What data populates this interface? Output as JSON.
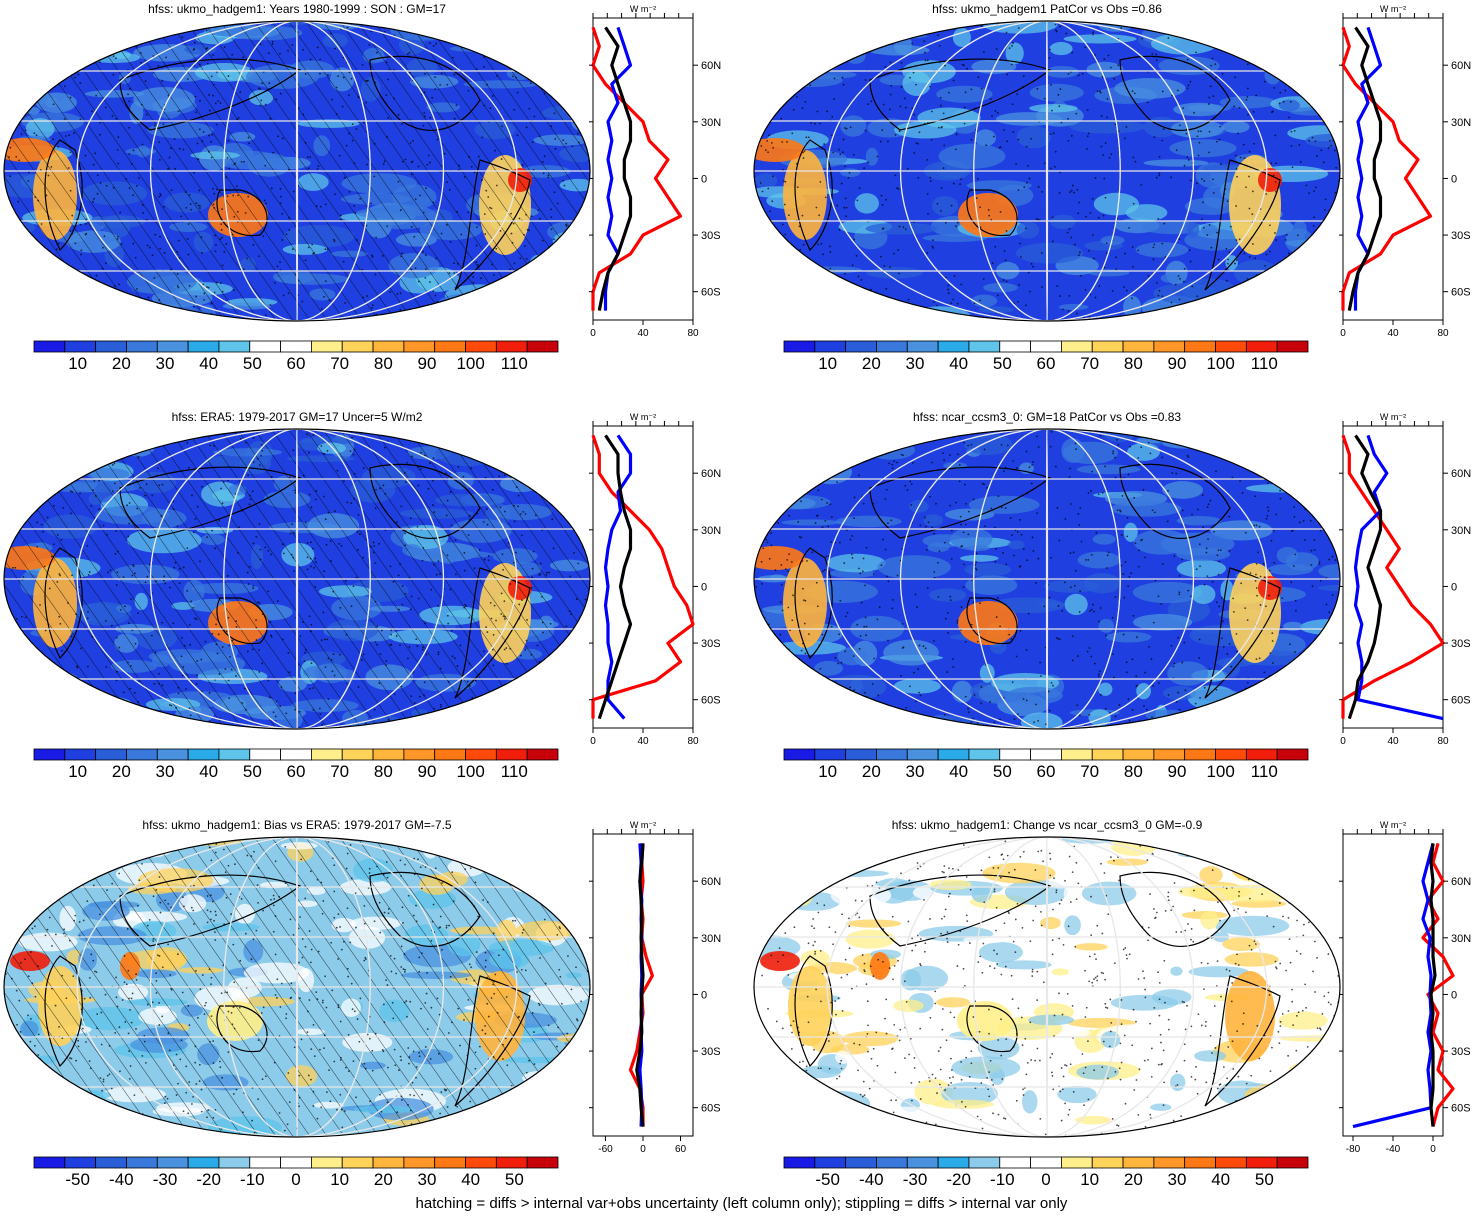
{
  "panels": [
    {
      "title": "hfss: ukmo_hadgem1: Years 1980-1999 : SON : GM=17",
      "colorbar_labels": [
        "10",
        "20",
        "30",
        "40",
        "50",
        "60",
        "70",
        "80",
        "90",
        "100",
        "110"
      ],
      "profile_unit": "W m⁻²",
      "profile_xticks": [
        "0",
        "40",
        "80"
      ],
      "profile_lat_labels": [
        "60N",
        "30N",
        "0",
        "30S",
        "60S"
      ],
      "hatched": true
    },
    {
      "title": "hfss: ukmo_hadgem1 PatCor vs Obs =0.86",
      "colorbar_labels": [
        "10",
        "20",
        "30",
        "40",
        "50",
        "60",
        "70",
        "80",
        "90",
        "100",
        "110"
      ],
      "profile_unit": "W m⁻²",
      "profile_xticks": [
        "0",
        "40",
        "80"
      ],
      "profile_lat_labels": [
        "60N",
        "30N",
        "0",
        "30S",
        "60S"
      ],
      "hatched": false
    },
    {
      "title": "hfss: ERA5: 1979-2017 GM=17 Uncer=5 W/m2",
      "colorbar_labels": [
        "10",
        "20",
        "30",
        "40",
        "50",
        "60",
        "70",
        "80",
        "90",
        "100",
        "110"
      ],
      "profile_unit": "W m⁻²",
      "profile_xticks": [
        "0",
        "40",
        "80"
      ],
      "profile_lat_labels": [
        "60N",
        "30N",
        "0",
        "30S",
        "60S"
      ],
      "hatched": true
    },
    {
      "title": "hfss: ncar_ccsm3_0: GM=18 PatCor vs Obs =0.83",
      "colorbar_labels": [
        "10",
        "20",
        "30",
        "40",
        "50",
        "60",
        "70",
        "80",
        "90",
        "100",
        "110"
      ],
      "profile_unit": "W m⁻²",
      "profile_xticks": [
        "0",
        "40",
        "80"
      ],
      "profile_lat_labels": [
        "60N",
        "30N",
        "0",
        "30S",
        "60S"
      ],
      "hatched": false
    },
    {
      "title": "hfss: ukmo_hadgem1: Bias vs ERA5: 1979-2017  GM=-7.5",
      "colorbar_labels": [
        "-50",
        "-40",
        "-30",
        "-20",
        "-10",
        "0",
        "10",
        "20",
        "30",
        "40",
        "50"
      ],
      "profile_unit": "W m⁻²",
      "profile_xticks": [
        "-60",
        "0",
        "60"
      ],
      "profile_lat_labels": [
        "60N",
        "30N",
        "0",
        "30S",
        "60S"
      ],
      "hatched": true
    },
    {
      "title": "hfss: ukmo_hadgem1: Change vs ncar_ccsm3_0 GM=-0.9",
      "colorbar_labels": [
        "-50",
        "-40",
        "-30",
        "-20",
        "-10",
        "0",
        "10",
        "20",
        "30",
        "40",
        "50"
      ],
      "profile_unit": "W m⁻²",
      "profile_xticks": [
        "-80",
        "-40",
        "0"
      ],
      "profile_lat_labels": [
        "60N",
        "30N",
        "0",
        "30S",
        "60S"
      ],
      "hatched": false
    }
  ],
  "footnote": "hatching = diffs > internal var+obs uncertainty (left column only); stippling = diffs > internal var only",
  "colors": {
    "full_scale": [
      "#1a1ae6",
      "#1f3fe0",
      "#2a5ed8",
      "#3a78dc",
      "#4a92e0",
      "#2aaae8",
      "#5ec4ea",
      "#ffffff",
      "#ffffff",
      "#ffef8a",
      "#ffd25a",
      "#ffb43c",
      "#ff9628",
      "#ff7814",
      "#ff4a0a",
      "#f01e0a",
      "#c8000a"
    ],
    "diff_scale": [
      "#1a1ae6",
      "#1f3fe0",
      "#2a5ed8",
      "#3a78dc",
      "#4a92e0",
      "#2aaae8",
      "#8ccbea",
      "#ffffff",
      "#ffffff",
      "#ffef8a",
      "#ffd25a",
      "#ffb43c",
      "#ff9628",
      "#ff7814",
      "#ff4a0a",
      "#f01e0a",
      "#c8000a"
    ],
    "model_line": "#000000",
    "obs_line": "#0000ff",
    "third_line": "#ff0000"
  },
  "chart_data": [
    {
      "type": "heatmap",
      "title": "hfss: ukmo_hadgem1: Years 1980-1999 : SON : GM=17",
      "colorbar": [
        10,
        20,
        30,
        40,
        50,
        60,
        70,
        80,
        90,
        100,
        110
      ],
      "profile": {
        "lat": [
          80,
          70,
          60,
          50,
          40,
          30,
          20,
          10,
          0,
          -10,
          -20,
          -30,
          -40,
          -50,
          -60,
          -70
        ],
        "black": [
          10,
          20,
          15,
          20,
          25,
          30,
          30,
          25,
          25,
          30,
          30,
          25,
          20,
          12,
          8,
          5
        ],
        "blue": [
          20,
          25,
          30,
          15,
          20,
          12,
          15,
          12,
          15,
          12,
          15,
          12,
          20,
          12,
          10,
          10
        ],
        "red": [
          0,
          5,
          0,
          10,
          25,
          40,
          45,
          60,
          50,
          60,
          70,
          40,
          30,
          5,
          0,
          0
        ],
        "xlim": [
          0,
          80
        ]
      }
    },
    {
      "type": "heatmap",
      "title": "hfss: ukmo_hadgem1 PatCor vs Obs =0.86",
      "colorbar": [
        10,
        20,
        30,
        40,
        50,
        60,
        70,
        80,
        90,
        100,
        110
      ],
      "profile": {
        "lat": [
          80,
          70,
          60,
          50,
          40,
          30,
          20,
          10,
          0,
          -10,
          -20,
          -30,
          -40,
          -50,
          -60,
          -70
        ],
        "black": [
          10,
          20,
          15,
          20,
          25,
          30,
          30,
          25,
          25,
          30,
          30,
          25,
          20,
          12,
          8,
          5
        ],
        "blue": [
          20,
          25,
          30,
          15,
          20,
          12,
          15,
          12,
          15,
          12,
          15,
          12,
          20,
          12,
          10,
          10
        ],
        "red": [
          0,
          5,
          0,
          10,
          25,
          40,
          45,
          60,
          50,
          60,
          70,
          40,
          30,
          5,
          0,
          0
        ],
        "xlim": [
          0,
          80
        ]
      }
    },
    {
      "type": "heatmap",
      "title": "hfss: ERA5: 1979-2017 GM=17 Uncer=5 W/m2",
      "colorbar": [
        10,
        20,
        30,
        40,
        50,
        60,
        70,
        80,
        90,
        100,
        110
      ],
      "profile": {
        "lat": [
          80,
          70,
          60,
          50,
          40,
          30,
          20,
          10,
          0,
          -10,
          -20,
          -30,
          -40,
          -50,
          -60,
          -70
        ],
        "black": [
          10,
          20,
          20,
          22,
          25,
          30,
          30,
          25,
          22,
          25,
          30,
          25,
          20,
          15,
          10,
          5
        ],
        "blue": [
          20,
          30,
          30,
          20,
          22,
          15,
          12,
          10,
          12,
          10,
          12,
          12,
          15,
          12,
          12,
          25
        ],
        "red": [
          0,
          5,
          5,
          15,
          30,
          45,
          55,
          60,
          65,
          75,
          80,
          60,
          70,
          50,
          0,
          0
        ],
        "xlim": [
          0,
          80
        ]
      }
    },
    {
      "type": "heatmap",
      "title": "hfss: ncar_ccsm3_0: GM=18 PatCor vs Obs =0.83",
      "colorbar": [
        10,
        20,
        30,
        40,
        50,
        60,
        70,
        80,
        90,
        100,
        110
      ],
      "profile": {
        "lat": [
          80,
          70,
          60,
          50,
          40,
          30,
          20,
          10,
          0,
          -10,
          -20,
          -30,
          -40,
          -50,
          -60,
          -70
        ],
        "black": [
          10,
          20,
          15,
          22,
          30,
          30,
          25,
          20,
          25,
          30,
          28,
          25,
          20,
          12,
          10,
          5
        ],
        "blue": [
          20,
          25,
          35,
          25,
          30,
          15,
          12,
          10,
          12,
          10,
          15,
          12,
          15,
          15,
          12,
          80
        ],
        "red": [
          0,
          5,
          5,
          15,
          25,
          35,
          45,
          35,
          45,
          55,
          70,
          80,
          55,
          25,
          0,
          0
        ],
        "xlim": [
          0,
          80
        ]
      }
    },
    {
      "type": "heatmap",
      "title": "hfss: ukmo_hadgem1: Bias vs ERA5: 1979-2017  GM=-7.5",
      "colorbar": [
        -50,
        -40,
        -30,
        -20,
        -10,
        0,
        10,
        20,
        30,
        40,
        50
      ],
      "profile": {
        "lat": [
          80,
          70,
          60,
          50,
          40,
          30,
          20,
          10,
          0,
          -10,
          -20,
          -30,
          -40,
          -50,
          -60,
          -70
        ],
        "black": [
          0,
          -2,
          -5,
          -3,
          -2,
          -3,
          -2,
          0,
          -2,
          -3,
          -2,
          -5,
          -10,
          -5,
          -3,
          0
        ],
        "blue": [
          -5,
          -3,
          -5,
          -2,
          -3,
          -2,
          -3,
          -2,
          -3,
          -2,
          -3,
          -2,
          -5,
          -3,
          -2,
          -3
        ],
        "red": [
          0,
          -2,
          0,
          -3,
          0,
          -2,
          5,
          15,
          -2,
          0,
          -5,
          -10,
          -20,
          -5,
          0,
          0
        ],
        "xlim": [
          -80,
          80
        ]
      }
    },
    {
      "type": "heatmap",
      "title": "hfss: ukmo_hadgem1: Change vs ncar_ccsm3_0 GM=-0.9",
      "colorbar": [
        -50,
        -40,
        -30,
        -20,
        -10,
        0,
        10,
        20,
        30,
        40,
        50
      ],
      "profile": {
        "lat": [
          80,
          70,
          60,
          50,
          40,
          30,
          20,
          10,
          0,
          -10,
          -20,
          -30,
          -40,
          -50,
          -60,
          -70
        ],
        "black": [
          0,
          -2,
          0,
          -2,
          0,
          0,
          0,
          2,
          -2,
          0,
          -2,
          0,
          0,
          0,
          -2,
          0
        ],
        "blue": [
          0,
          -5,
          -10,
          -5,
          -10,
          -3,
          -5,
          -2,
          -3,
          -2,
          -5,
          -2,
          -5,
          -3,
          -2,
          -80
        ],
        "red": [
          5,
          0,
          10,
          -5,
          5,
          -10,
          10,
          20,
          -5,
          5,
          0,
          10,
          5,
          20,
          5,
          0
        ],
        "xlim": [
          -90,
          10
        ]
      }
    }
  ]
}
